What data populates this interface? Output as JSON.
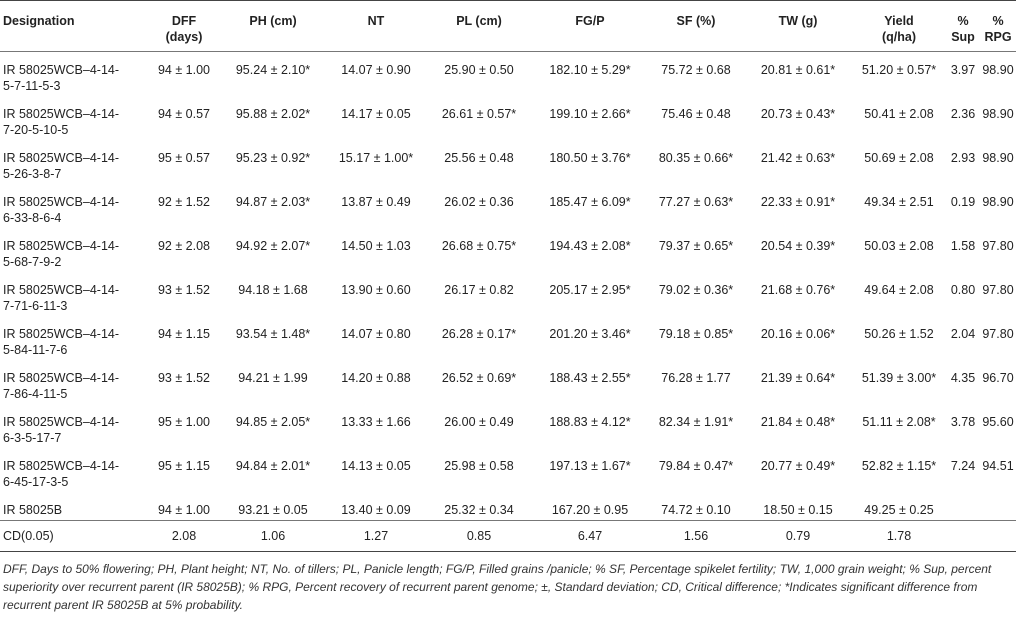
{
  "headers": [
    "Designation",
    "DFF\n(days)",
    "PH (cm)",
    "NT",
    "PL (cm)",
    "FG/P",
    "SF (%)",
    "TW (g)",
    "Yield\n(q/ha)",
    "%\nSup",
    "%\nRPG"
  ],
  "rows": [
    [
      "IR 58025WCB–4-14-\n5-7-11-5-3",
      "94 ± 1.00",
      "95.24 ± 2.10*",
      "14.07 ± 0.90",
      "25.90 ± 0.50",
      "182.10 ± 5.29*",
      "75.72 ± 0.68",
      "20.81 ± 0.61*",
      "51.20 ± 0.57*",
      "3.97",
      "98.90"
    ],
    [
      "IR 58025WCB–4-14-\n7-20-5-10-5",
      "94 ± 0.57",
      "95.88 ± 2.02*",
      "14.17 ± 0.05",
      "26.61 ± 0.57*",
      "199.10 ± 2.66*",
      "75.46 ± 0.48",
      "20.73 ± 0.43*",
      "50.41 ± 2.08",
      "2.36",
      "98.90"
    ],
    [
      "IR 58025WCB–4-14-\n5-26-3-8-7",
      "95 ± 0.57",
      "95.23 ± 0.92*",
      "15.17 ± 1.00*",
      "25.56 ± 0.48",
      "180.50 ± 3.76*",
      "80.35 ± 0.66*",
      "21.42 ± 0.63*",
      "50.69 ± 2.08",
      "2.93",
      "98.90"
    ],
    [
      "IR 58025WCB–4-14-\n6-33-8-6-4",
      "92 ± 1.52",
      "94.87 ± 2.03*",
      "13.87 ± 0.49",
      "26.02 ± 0.36",
      "185.47 ± 6.09*",
      "77.27 ± 0.63*",
      "22.33 ± 0.91*",
      "49.34 ± 2.51",
      "0.19",
      "98.90"
    ],
    [
      "IR 58025WCB–4-14-\n5-68-7-9-2",
      "92 ± 2.08",
      "94.92 ± 2.07*",
      "14.50 ± 1.03",
      "26.68 ± 0.75*",
      "194.43 ± 2.08*",
      "79.37 ± 0.65*",
      "20.54 ± 0.39*",
      "50.03 ± 2.08",
      "1.58",
      "97.80"
    ],
    [
      "IR 58025WCB–4-14-\n7-71-6-11-3",
      "93 ± 1.52",
      "94.18 ± 1.68",
      "13.90 ± 0.60",
      "26.17 ± 0.82",
      "205.17 ± 2.95*",
      "79.02 ± 0.36*",
      "21.68 ± 0.76*",
      "49.64 ± 2.08",
      "0.80",
      "97.80"
    ],
    [
      "IR 58025WCB–4-14-\n5-84-11-7-6",
      "94 ± 1.15",
      "93.54 ± 1.48*",
      "14.07 ± 0.80",
      "26.28 ± 0.17*",
      "201.20 ± 3.46*",
      "79.18 ± 0.85*",
      "20.16 ± 0.06*",
      "50.26 ± 1.52",
      "2.04",
      "97.80"
    ],
    [
      "IR 58025WCB–4-14-\n7-86-4-11-5",
      "93 ± 1.52",
      "94.21 ± 1.99",
      "14.20 ± 0.88",
      "26.52 ± 0.69*",
      "188.43 ± 2.55*",
      "76.28 ± 1.77",
      "21.39 ± 0.64*",
      "51.39 ± 3.00*",
      "4.35",
      "96.70"
    ],
    [
      "IR 58025WCB–4-14-\n6-3-5-17-7",
      "95 ± 1.00",
      "94.85 ± 2.05*",
      "13.33 ± 1.66",
      "26.00 ± 0.49",
      "188.83 ± 4.12*",
      "82.34 ± 1.91*",
      "21.84 ± 0.48*",
      "51.11 ± 2.08*",
      "3.78",
      "95.60"
    ],
    [
      "IR 58025WCB–4-14-\n6-45-17-3-5",
      "95 ± 1.15",
      "94.84 ± 2.01*",
      "14.13 ± 0.05",
      "25.98 ± 0.58",
      "197.13 ± 1.67*",
      "79.84 ± 0.47*",
      "20.77 ± 0.49*",
      "52.82 ± 1.15*",
      "7.24",
      "94.51"
    ]
  ],
  "control_row": [
    "IR 58025B",
    "94 ± 1.00",
    "93.21 ± 0.05",
    "13.40 ± 0.09",
    "25.32 ± 0.34",
    "167.20 ± 0.95",
    "74.72 ± 0.10",
    "18.50 ± 0.15",
    "49.25 ± 0.25",
    "",
    ""
  ],
  "cd_row": [
    "CD(0.05)",
    "2.08",
    "1.06",
    "1.27",
    "0.85",
    "6.47",
    "1.56",
    "0.79",
    "1.78",
    "",
    ""
  ],
  "footnote": "DFF, Days to 50% flowering; PH, Plant height; NT, No. of tillers; PL, Panicle length; FG/P, Filled grains /panicle; % SF, Percentage spikelet fertility; TW, 1,000 grain weight; % Sup, percent superiority over recurrent parent (IR 58025B); % RPG, Percent recovery of recurrent parent genome; ±, Standard deviation; CD, Critical difference; *Indicates significant difference from recurrent parent IR 58025B at 5% probability."
}
